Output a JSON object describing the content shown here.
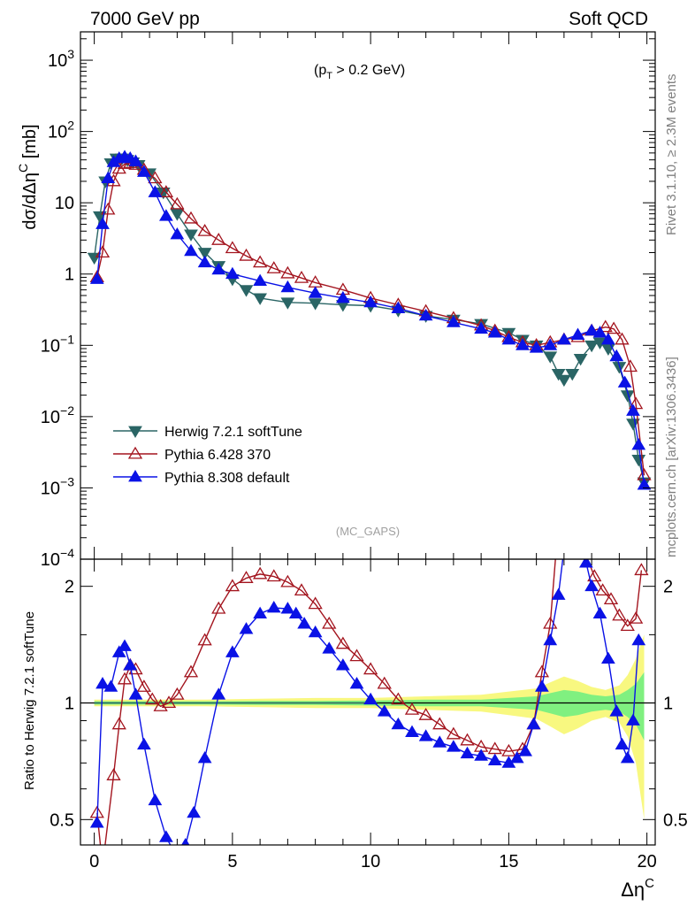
{
  "header": {
    "left": "7000 GeV pp",
    "right": "Soft QCD"
  },
  "side_labels": {
    "rivet": "Rivet 3.1.10, ≥ 2.3M events",
    "mcplots": "mcplots.cern.ch [arXiv:1306.3436]"
  },
  "annotations": {
    "cut_main": "(p",
    "cut_sub": "T",
    "cut_rest": " > 0.2 GeV)",
    "watermark": "(MC_GAPS)"
  },
  "colors": {
    "herwig": "#2a6565",
    "pythia6": "#a3141e",
    "pythia8": "#0a12e6",
    "band_inner": "#80f080",
    "band_outer": "#f8f880"
  },
  "chart_data": [
    {
      "type": "line",
      "yscale": "log",
      "ylabel": "dσ/dΔη^C [mb]",
      "xlim": [
        -0.5,
        20.3
      ],
      "ylim": [
        0.0001,
        2500
      ],
      "yticks": [
        {
          "v": 0.0001,
          "base": "10",
          "exp": "−4"
        },
        {
          "v": 0.001,
          "base": "10",
          "exp": "−3"
        },
        {
          "v": 0.01,
          "base": "10",
          "exp": "−2"
        },
        {
          "v": 0.1,
          "base": "10",
          "exp": "−1"
        },
        {
          "v": 1,
          "base": "1",
          "exp": ""
        },
        {
          "v": 10,
          "base": "10",
          "exp": ""
        },
        {
          "v": 100,
          "base": "10",
          "exp": "2"
        },
        {
          "v": 1000,
          "base": "10",
          "exp": "3"
        }
      ],
      "legend": {
        "position": "bottom-left"
      },
      "series": [
        {
          "name": "Herwig 7.2.1 softTune",
          "marker": "triangle-down",
          "color": "#2a6565",
          "x": [
            0,
            0.2,
            0.4,
            0.6,
            0.8,
            1.0,
            1.2,
            1.4,
            1.6,
            2.0,
            2.5,
            3.0,
            3.5,
            4.0,
            4.5,
            5.0,
            5.5,
            6.0,
            7.0,
            8.0,
            9.0,
            10.0,
            11.0,
            12.0,
            13.0,
            14.0,
            15.0,
            15.5,
            16.0,
            16.5,
            16.8,
            17.0,
            17.3,
            17.6,
            18.0,
            18.3,
            18.6,
            19.0,
            19.3,
            19.5,
            19.7,
            19.9
          ],
          "y": [
            1.7,
            6.5,
            20,
            36,
            42,
            42,
            40,
            37,
            34,
            26,
            14,
            7,
            3.6,
            2,
            1.3,
            0.85,
            0.6,
            0.46,
            0.4,
            0.39,
            0.37,
            0.36,
            0.31,
            0.26,
            0.23,
            0.2,
            0.15,
            0.12,
            0.1,
            0.07,
            0.04,
            0.033,
            0.04,
            0.065,
            0.1,
            0.11,
            0.09,
            0.05,
            0.02,
            0.008,
            0.0025,
            0.0012
          ]
        },
        {
          "name": "Pythia 6.428 370",
          "marker": "triangle-up-open",
          "color": "#a3141e",
          "x": [
            0.1,
            0.3,
            0.5,
            0.7,
            0.9,
            1.1,
            1.3,
            1.5,
            1.8,
            2.2,
            2.6,
            3.0,
            3.5,
            4.0,
            4.5,
            5.0,
            5.5,
            6.0,
            6.5,
            7.0,
            7.5,
            8.0,
            9.0,
            10.0,
            11.0,
            12.0,
            13.0,
            14.0,
            14.5,
            15.0,
            15.5,
            16.0,
            16.5,
            17.0,
            17.5,
            18.0,
            18.5,
            18.8,
            19.1,
            19.4,
            19.6,
            19.9
          ],
          "y": [
            0.9,
            2,
            8,
            20,
            30,
            35,
            36,
            34,
            29,
            22,
            14,
            9.5,
            6,
            4,
            3,
            2.3,
            1.8,
            1.45,
            1.2,
            1.02,
            0.88,
            0.76,
            0.6,
            0.46,
            0.37,
            0.3,
            0.24,
            0.19,
            0.16,
            0.13,
            0.11,
            0.1,
            0.11,
            0.12,
            0.13,
            0.16,
            0.18,
            0.17,
            0.12,
            0.05,
            0.015,
            0.0015
          ]
        },
        {
          "name": "Pythia 8.308 default",
          "marker": "triangle-up",
          "color": "#0a12e6",
          "x": [
            0.1,
            0.3,
            0.5,
            0.7,
            0.9,
            1.1,
            1.3,
            1.5,
            1.8,
            2.2,
            2.6,
            3.0,
            3.5,
            4.0,
            4.5,
            5.0,
            6.0,
            7.0,
            8.0,
            9.0,
            10.0,
            11.0,
            12.0,
            13.0,
            14.0,
            14.5,
            15.0,
            15.5,
            16.0,
            16.5,
            17.0,
            17.5,
            18.0,
            18.3,
            18.6,
            18.9,
            19.2,
            19.5,
            19.7,
            19.9
          ],
          "y": [
            0.85,
            5,
            22,
            37,
            42,
            44,
            42,
            38,
            27,
            14,
            6.5,
            3.6,
            2.1,
            1.45,
            1.15,
            1.0,
            0.8,
            0.65,
            0.54,
            0.46,
            0.4,
            0.33,
            0.26,
            0.21,
            0.17,
            0.15,
            0.12,
            0.1,
            0.092,
            0.1,
            0.12,
            0.14,
            0.16,
            0.15,
            0.12,
            0.07,
            0.03,
            0.012,
            0.004,
            0.0011
          ]
        }
      ]
    },
    {
      "type": "line",
      "yscale": "log",
      "xlabel": "Δη^C",
      "ylabel": "Ratio to Herwig 7.2.1 softTune",
      "xlim": [
        -0.5,
        20.3
      ],
      "ylim": [
        0.43,
        2.35
      ],
      "xticks": [
        0,
        5,
        10,
        15,
        20
      ],
      "yticks": [
        0.5,
        1,
        2
      ],
      "band": {
        "x": [
          0,
          2,
          4,
          6,
          8,
          10,
          12,
          14,
          15,
          16,
          16.5,
          17,
          17.5,
          18,
          18.5,
          19,
          19.3,
          19.6,
          19.9
        ],
        "inner": [
          0.01,
          0.01,
          0.01,
          0.012,
          0.012,
          0.015,
          0.02,
          0.02,
          0.03,
          0.04,
          0.06,
          0.08,
          0.07,
          0.05,
          0.04,
          0.05,
          0.08,
          0.12,
          0.2
        ],
        "outer": [
          0.02,
          0.02,
          0.02,
          0.025,
          0.03,
          0.03,
          0.04,
          0.05,
          0.07,
          0.09,
          0.13,
          0.17,
          0.14,
          0.1,
          0.08,
          0.11,
          0.18,
          0.3,
          0.5
        ]
      },
      "series": [
        {
          "name": "Pythia 6.428 370",
          "marker": "triangle-up-open",
          "color": "#a3141e",
          "x": [
            0.1,
            0.3,
            0.7,
            0.9,
            1.1,
            1.3,
            1.5,
            1.8,
            2.1,
            2.4,
            2.7,
            3.0,
            3.5,
            4.0,
            4.5,
            5.0,
            5.5,
            6.0,
            6.5,
            7.0,
            7.5,
            8.0,
            8.5,
            9.0,
            9.5,
            10.0,
            10.5,
            11.0,
            11.5,
            12.0,
            12.5,
            13.0,
            13.5,
            14.0,
            14.5,
            15.0,
            15.5,
            15.9,
            16.2,
            16.5,
            16.7,
            17.8,
            18.1,
            18.4,
            18.7,
            19.0,
            19.3,
            19.6,
            19.8
          ],
          "y": [
            0.52,
            0.38,
            0.65,
            0.88,
            1.15,
            1.25,
            1.22,
            1.1,
            1.02,
            0.98,
            1.0,
            1.05,
            1.2,
            1.45,
            1.75,
            2.0,
            2.1,
            2.15,
            2.12,
            2.05,
            1.95,
            1.8,
            1.6,
            1.42,
            1.32,
            1.22,
            1.12,
            1.02,
            0.96,
            0.93,
            0.88,
            0.83,
            0.8,
            0.77,
            0.76,
            0.75,
            0.76,
            0.88,
            1.2,
            1.6,
            2.4,
            2.4,
            2.12,
            1.95,
            1.85,
            1.68,
            1.58,
            1.65,
            2.2
          ]
        },
        {
          "name": "Pythia 8.308 default",
          "marker": "triangle-up",
          "color": "#0a12e6",
          "x": [
            0.1,
            0.3,
            0.6,
            0.9,
            1.1,
            1.3,
            1.5,
            1.8,
            2.2,
            2.6,
            3.0,
            3.3,
            3.6,
            4.0,
            4.5,
            5.0,
            5.5,
            6.0,
            6.5,
            7.0,
            7.3,
            7.6,
            8.0,
            8.5,
            9.0,
            9.5,
            10.0,
            10.5,
            11.0,
            11.5,
            12.0,
            12.5,
            13.0,
            13.5,
            14.0,
            14.5,
            15.0,
            15.3,
            15.6,
            15.9,
            16.2,
            16.5,
            16.8,
            17.0,
            17.5,
            17.8,
            18.0,
            18.3,
            18.6,
            18.9,
            19.1,
            19.3,
            19.5,
            19.7
          ],
          "y": [
            0.49,
            1.12,
            1.1,
            1.35,
            1.4,
            1.25,
            1.05,
            0.78,
            0.56,
            0.45,
            0.4,
            0.43,
            0.52,
            0.72,
            1.05,
            1.35,
            1.55,
            1.7,
            1.76,
            1.75,
            1.7,
            1.6,
            1.52,
            1.38,
            1.25,
            1.12,
            1.02,
            0.95,
            0.88,
            0.84,
            0.82,
            0.79,
            0.77,
            0.74,
            0.73,
            0.71,
            0.7,
            0.72,
            0.75,
            0.88,
            1.1,
            1.45,
            1.9,
            2.5,
            2.5,
            2.3,
            2.0,
            1.7,
            1.3,
            0.95,
            0.78,
            0.72,
            0.9,
            1.45
          ]
        }
      ]
    }
  ]
}
